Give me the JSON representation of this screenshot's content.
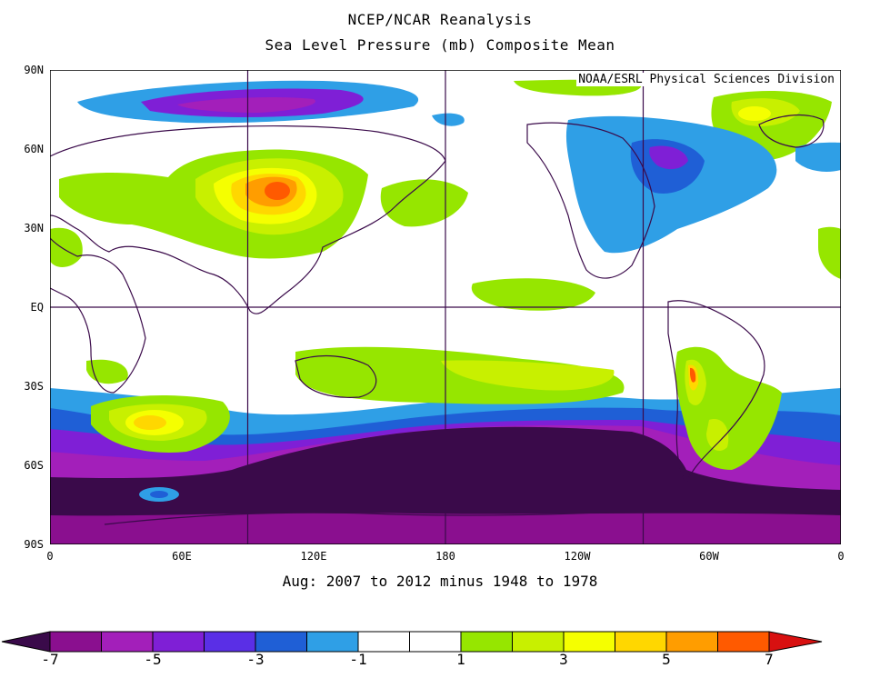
{
  "header": {
    "title_line1": "NCEP/NCAR Reanalysis",
    "title_line2": "Sea Level Pressure (mb) Composite Mean"
  },
  "credit": "NOAA/ESRL Physical Sciences Division",
  "subtitle": "Aug: 2007 to 2012 minus 1948 to 1978",
  "lat_labels": [
    "90N",
    "60N",
    "30N",
    "EQ",
    "30S",
    "60S",
    "90S"
  ],
  "lon_labels": [
    "0",
    "60E",
    "120E",
    "180",
    "120W",
    "60W",
    "0"
  ],
  "colorbar": {
    "labels": [
      "-7",
      "-5",
      "-3",
      "-1",
      "1",
      "3",
      "5",
      "7"
    ],
    "colors": [
      "#3a0a4a",
      "#8a0f8f",
      "#a31fba",
      "#7f1fd6",
      "#5a2fe6",
      "#1f5fd6",
      "#2f9fe6",
      "#ffffff",
      "#ffffff",
      "#96e600",
      "#c8f000",
      "#f5ff00",
      "#ffd700",
      "#ff9d00",
      "#ff5a00",
      "#d81010"
    ]
  },
  "map": {
    "projection": "cylindrical-equidistant",
    "lon_range": [
      0,
      360
    ],
    "lat_range": [
      -90,
      90
    ],
    "grid_lons": [
      90,
      180,
      270
    ],
    "grid_lats": [
      0
    ]
  }
}
